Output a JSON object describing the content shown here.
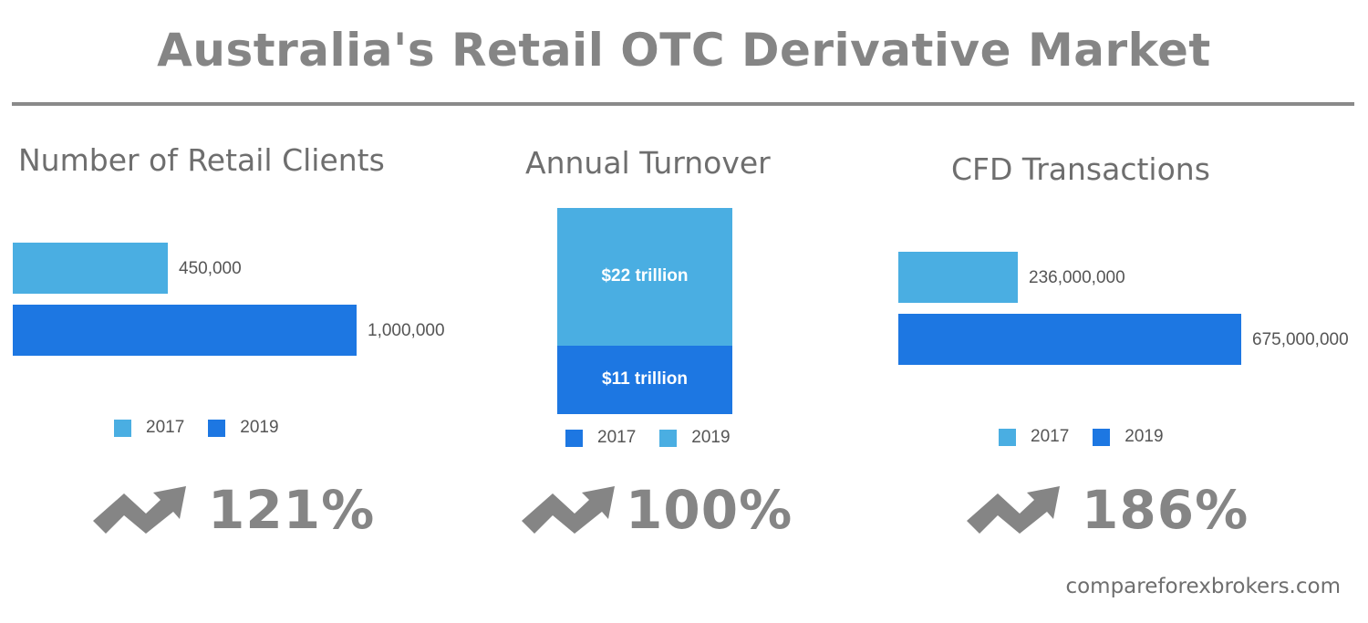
{
  "title": "Australia's Retail OTC Derivative Market",
  "footer": "compareforexbrokers.com",
  "colors": {
    "light_blue": "#4aaee2",
    "dark_blue": "#1d77e2",
    "text_gray": "#858585"
  },
  "panels": [
    {
      "title": "Number of Retail Clients",
      "value_labels": [
        "450,000",
        "1,000,000"
      ],
      "legend": [
        "2017",
        "2019"
      ],
      "growth_icon": "trend-up-arrow-icon",
      "growth": "121%"
    },
    {
      "title": "Annual Turnover",
      "segment_labels": [
        "$11 trillion",
        "$22 trillion"
      ],
      "legend": [
        "2017",
        "2019"
      ],
      "growth_icon": "trend-up-arrow-icon",
      "growth": "100%"
    },
    {
      "title": "CFD Transactions",
      "value_labels": [
        "236,000,000",
        "675,000,000"
      ],
      "legend": [
        "2017",
        "2019"
      ],
      "growth_icon": "trend-up-arrow-icon",
      "growth": "186%"
    }
  ],
  "chart_data": [
    {
      "type": "bar",
      "orientation": "horizontal",
      "title": "Number of Retail Clients",
      "categories": [
        "2017",
        "2019"
      ],
      "values": [
        450000,
        1000000
      ],
      "legend_position": "bottom",
      "grid": false
    },
    {
      "type": "bar",
      "orientation": "vertical-stacked",
      "title": "Annual Turnover",
      "series": [
        {
          "name": "2017",
          "values": [
            11
          ]
        },
        {
          "name": "2019",
          "values": [
            22
          ]
        }
      ],
      "unit": "$ trillion",
      "legend_position": "bottom",
      "grid": false
    },
    {
      "type": "bar",
      "orientation": "horizontal",
      "title": "CFD Transactions",
      "categories": [
        "2017",
        "2019"
      ],
      "values": [
        236000000,
        675000000
      ],
      "legend_position": "bottom",
      "grid": false
    }
  ]
}
